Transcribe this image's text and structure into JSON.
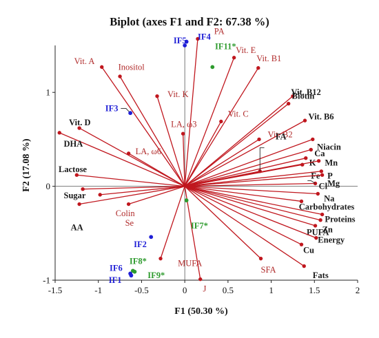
{
  "chart_data": {
    "type": "scatter",
    "title": "Biplot (axes F1 and F2: 67.38 %)",
    "xlabel": "F1 (50.30 %)",
    "ylabel": "F2 (17.08 %)",
    "xlim": [
      -1.5,
      2
    ],
    "ylim": [
      -1,
      1.5
    ],
    "xticks": [
      "-1.5",
      "-1",
      "-0.5",
      "0",
      "0.5",
      "1",
      "1.5",
      "2"
    ],
    "yticks": [
      "-1",
      "0",
      "1"
    ],
    "grid": false,
    "legend": "none",
    "colors": {
      "vector": "#c0171e",
      "variable_label": "#b02a2a",
      "bold_label": "#1a1a1a",
      "observation_blue": "#1f1fd6",
      "observation_green": "#2e9b2e"
    },
    "variables": [
      {
        "name": "PA",
        "x": 0.15,
        "y": 1.57,
        "dx": 0.19,
        "dy": 0.08,
        "bold": false
      },
      {
        "name": "Vit. E",
        "x": 0.57,
        "y": 1.37,
        "dx": 0.02,
        "dy": 0.08,
        "bold": false
      },
      {
        "name": "Vit. B1",
        "x": 0.85,
        "y": 1.26,
        "dx": -0.02,
        "dy": 0.1,
        "bold": false
      },
      {
        "name": "Vit. A",
        "x": -0.96,
        "y": 1.27,
        "dx": -0.32,
        "dy": 0.06,
        "bold": false
      },
      {
        "name": "Inositol",
        "x": -0.75,
        "y": 1.17,
        "dx": -0.02,
        "dy": 0.1,
        "bold": false
      },
      {
        "name": "Vit. K",
        "x": -0.32,
        "y": 0.96,
        "dx": 0.12,
        "dy": 0.02,
        "bold": false
      },
      {
        "name": "Vit. B12",
        "x": 1.25,
        "y": 0.96,
        "dx": -0.02,
        "dy": 0.04,
        "bold": true
      },
      {
        "name": "Biotin",
        "x": 1.2,
        "y": 0.88,
        "dx": 0.04,
        "dy": 0.08,
        "bold": true
      },
      {
        "name": "Vit. B6",
        "x": 1.39,
        "y": 0.7,
        "dx": 0.04,
        "dy": 0.04,
        "bold": true
      },
      {
        "name": "Vit. C",
        "x": 0.42,
        "y": 0.69,
        "dx": 0.08,
        "dy": 0.08,
        "bold": false
      },
      {
        "name": "LA, ω3",
        "x": -0.02,
        "y": 0.56,
        "dx": -0.14,
        "dy": 0.1,
        "bold": false
      },
      {
        "name": "Vit. D",
        "x": -1.22,
        "y": 0.62,
        "dx": -0.12,
        "dy": 0.06,
        "bold": true
      },
      {
        "name": "DHA",
        "x": -1.45,
        "y": 0.57,
        "dx": 0.05,
        "dy": -0.12,
        "bold": true
      },
      {
        "name": "Vit. B2",
        "x": 0.86,
        "y": 0.5,
        "dx": 0.1,
        "dy": 0.05,
        "bold": false
      },
      {
        "name": "Niacin",
        "x": 1.48,
        "y": 0.5,
        "dx": 0.05,
        "dy": -0.08,
        "bold": true
      },
      {
        "name": "LA, ω6",
        "x": -0.65,
        "y": 0.35,
        "dx": 0.08,
        "dy": 0.02,
        "bold": false
      },
      {
        "name": "Ca",
        "x": 1.46,
        "y": 0.39,
        "dx": 0.04,
        "dy": -0.04,
        "bold": true
      },
      {
        "name": "K",
        "x": 1.4,
        "y": 0.3,
        "dx": 0.04,
        "dy": -0.05,
        "bold": true
      },
      {
        "name": "Mn",
        "x": 1.55,
        "y": 0.27,
        "dx": 0.07,
        "dy": -0.02,
        "bold": true
      },
      {
        "name": "Fe",
        "x": 1.36,
        "y": 0.23,
        "dx": 0.1,
        "dy": -0.12,
        "bold": true
      },
      {
        "name": "P",
        "x": 1.58,
        "y": 0.16,
        "dx": 0.07,
        "dy": -0.05,
        "bold": true
      },
      {
        "name": "Mg",
        "x": 1.59,
        "y": 0.12,
        "dx": 0.06,
        "dy": -0.09,
        "bold": true
      },
      {
        "name": "FA",
        "x": 0.87,
        "y": 0.16,
        "dx": 0.18,
        "dy": 0.37,
        "bold": true
      },
      {
        "name": "Cl",
        "x": 1.51,
        "y": 0.03,
        "dx": 0.04,
        "dy": -0.03,
        "bold": true
      },
      {
        "name": "Na",
        "x": 1.54,
        "y": -0.08,
        "dx": 0.07,
        "dy": -0.05,
        "bold": true
      },
      {
        "name": "Lactose",
        "x": -1.25,
        "y": 0.12,
        "dx": -0.21,
        "dy": 0.06,
        "bold": true
      },
      {
        "name": "Sugar",
        "x": -1.18,
        "y": -0.03,
        "dx": -0.22,
        "dy": -0.07,
        "bold": true
      },
      {
        "name": "Carbohydrates",
        "x": 1.35,
        "y": -0.16,
        "dx": -0.03,
        "dy": -0.06,
        "bold": true
      },
      {
        "name": "AA",
        "x": -1.22,
        "y": -0.19,
        "dx": -0.1,
        "dy": -0.25,
        "bold": true
      },
      {
        "name": "Colin",
        "x": -0.98,
        "y": -0.09,
        "dx": 0.18,
        "dy": -0.2,
        "bold": false
      },
      {
        "name": "Se",
        "x": -0.65,
        "y": -0.19,
        "dx": -0.04,
        "dy": -0.2,
        "bold": false
      },
      {
        "name": "Proteins",
        "x": 1.59,
        "y": -0.3,
        "dx": 0.03,
        "dy": -0.05,
        "bold": true
      },
      {
        "name": "Zn",
        "x": 1.57,
        "y": -0.36,
        "dx": 0.02,
        "dy": -0.1,
        "bold": true
      },
      {
        "name": "PUFA",
        "x": 1.51,
        "y": -0.42,
        "dx": -0.1,
        "dy": -0.07,
        "bold": true
      },
      {
        "name": "Energy",
        "x": 1.52,
        "y": -0.55,
        "dx": 0.02,
        "dy": -0.02,
        "bold": true
      },
      {
        "name": "Cu",
        "x": 1.35,
        "y": -0.62,
        "dx": 0.02,
        "dy": -0.06,
        "bold": true
      },
      {
        "name": "SFA",
        "x": 0.88,
        "y": -0.77,
        "dx": 0.0,
        "dy": -0.12,
        "bold": false
      },
      {
        "name": "Fats",
        "x": 1.38,
        "y": -0.85,
        "dx": 0.1,
        "dy": -0.1,
        "bold": true
      },
      {
        "name": "MUFA",
        "x": -0.28,
        "y": -0.77,
        "dx": 0.2,
        "dy": -0.05,
        "bold": false
      },
      {
        "name": "J",
        "x": 0.18,
        "y": -0.99,
        "dx": 0.03,
        "dy": -0.1,
        "bold": false
      }
    ],
    "observations": [
      {
        "name": "IF5",
        "x": 0.0,
        "y": 1.5,
        "dx": -0.13,
        "dy": 0.05,
        "group": "blue"
      },
      {
        "name": "IF4",
        "x": 0.02,
        "y": 1.54,
        "dx": 0.13,
        "dy": 0.05,
        "group": "blue"
      },
      {
        "name": "IF11*",
        "x": 0.32,
        "y": 1.27,
        "dx": 0.03,
        "dy": 0.22,
        "group": "green"
      },
      {
        "name": "IF3",
        "x": -0.63,
        "y": 0.78,
        "dx": -0.29,
        "dy": 0.05,
        "group": "blue"
      },
      {
        "name": "IF7*",
        "x": 0.02,
        "y": -0.15,
        "dx": 0.05,
        "dy": -0.27,
        "group": "green"
      },
      {
        "name": "IF2",
        "x": -0.39,
        "y": -0.54,
        "dx": -0.2,
        "dy": -0.08,
        "group": "blue"
      },
      {
        "name": "IF8*",
        "x": -0.6,
        "y": -0.9,
        "dx": -0.04,
        "dy": 0.1,
        "group": "green"
      },
      {
        "name": "IF6",
        "x": -0.63,
        "y": -0.93,
        "dx": -0.24,
        "dy": 0.06,
        "group": "blue"
      },
      {
        "name": "IF1",
        "x": -0.62,
        "y": -0.95,
        "dx": -0.26,
        "dy": -0.05,
        "group": "blue"
      },
      {
        "name": "IF9*",
        "x": -0.58,
        "y": -0.91,
        "dx": 0.15,
        "dy": -0.04,
        "group": "green"
      }
    ]
  }
}
